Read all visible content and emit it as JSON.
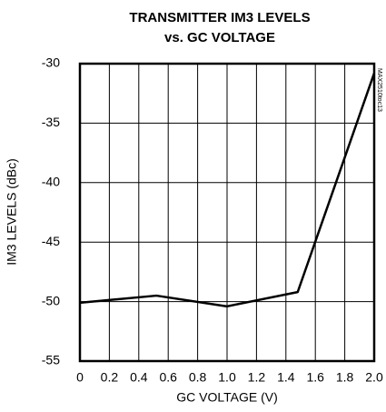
{
  "chart_data": {
    "type": "line",
    "title": "TRANSMITTER IM3 LEVELS",
    "subtitle": "vs. GC VOLTAGE",
    "x_label": "GC VOLTAGE (V)",
    "y_label": "IM3  LEVELS (dBc)",
    "annotation": "MAX2510toc13",
    "x": [
      0,
      0.52,
      1.0,
      1.48,
      2.0
    ],
    "series": [
      {
        "color": "#000000",
        "values": [
          -50.1,
          -49.5,
          -50.4,
          -49.2,
          -30.8
        ]
      }
    ],
    "xlim": [
      0,
      2
    ],
    "xticks": [
      0,
      0.2,
      0.4,
      0.6,
      0.8,
      {
        "value": 1,
        "label": "1.0"
      },
      1.2,
      1.4,
      1.6,
      1.8,
      {
        "value": 2,
        "label": "2.0"
      }
    ],
    "ylim": [
      -55,
      -30
    ],
    "yticks": [
      -55,
      -50,
      -45,
      -40,
      -35,
      -30
    ],
    "grid": true
  }
}
